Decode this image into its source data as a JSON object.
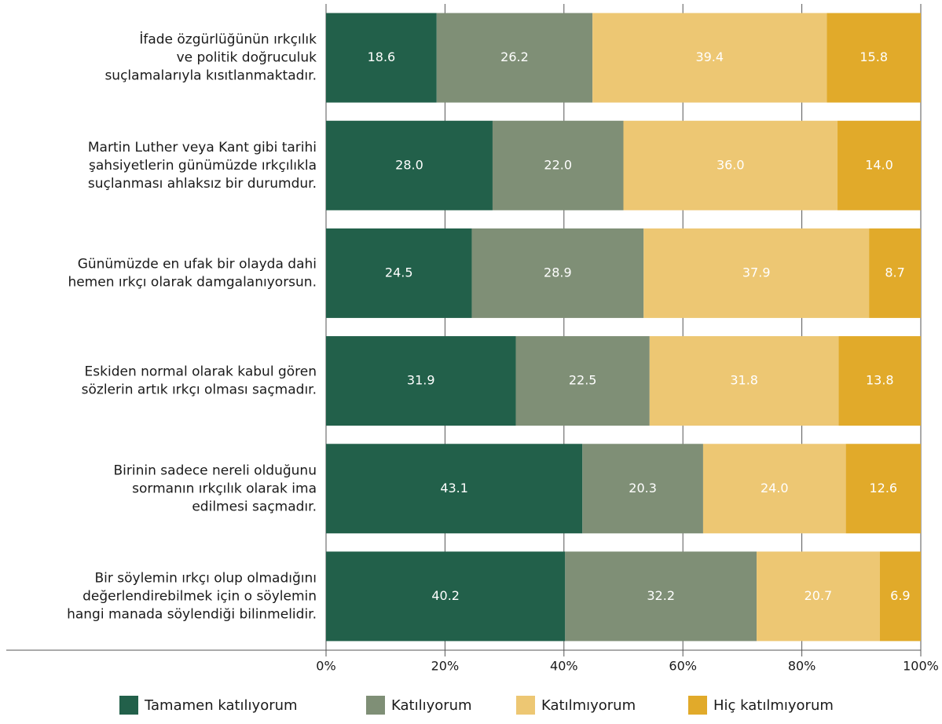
{
  "chart_data": {
    "type": "stacked-bar-horizontal",
    "categories": [
      [
        "İfade özgürlüğünün ırkçılık",
        "ve politik doğruculuk",
        "suçlamalarıyla kısıtlanmaktadır."
      ],
      [
        "Martin Luther veya Kant gibi tarihi",
        "şahsiyetlerin günümüzde ırkçılıkla",
        "suçlanması ahlaksız bir durumdur."
      ],
      [
        "Günümüzde en ufak bir olayda dahi",
        "hemen ırkçı olarak damgalanıyorsun."
      ],
      [
        "Eskiden normal olarak kabul gören",
        "sözlerin artık ırkçı olması saçmadır."
      ],
      [
        "Birinin sadece nereli olduğunu",
        "sormanın ırkçılık olarak ima",
        "edilmesi saçmadır."
      ],
      [
        "Bir söylemin ırkçı olup olmadığını",
        "değerlendirebilmek için o söylemin",
        "hangi manada söylendiği bilinmelidir."
      ]
    ],
    "series": [
      {
        "name": "Tamamen katılıyorum",
        "color": "#22604a",
        "values": [
          18.6,
          28.0,
          24.5,
          31.9,
          43.1,
          40.2
        ],
        "value_labels": [
          "18.6",
          "28.0",
          "24.5",
          "31.9",
          "43.1",
          "40.2"
        ]
      },
      {
        "name": "Katılıyorum",
        "color": "#7f8f76",
        "values": [
          26.2,
          22.0,
          28.9,
          22.5,
          20.3,
          32.2
        ],
        "value_labels": [
          "26.2",
          "22.0",
          "28.9",
          "22.5",
          "20.3",
          "32.2"
        ]
      },
      {
        "name": "Katılmıyorum",
        "color": "#edc773",
        "values": [
          39.4,
          36.0,
          37.9,
          31.8,
          24.0,
          20.7
        ],
        "value_labels": [
          "39.4",
          "36.0",
          "37.9",
          "31.8",
          "24.0",
          "20.7"
        ]
      },
      {
        "name": "Hiç katılmıyorum",
        "color": "#e1aa2a",
        "values": [
          15.8,
          14.0,
          8.7,
          13.8,
          12.6,
          6.9
        ],
        "value_labels": [
          "15.8",
          "14.0",
          "8.7",
          "13.8",
          "12.6",
          "6.9"
        ]
      }
    ],
    "xlim": [
      0,
      100
    ],
    "xticks": [
      {
        "value": 0,
        "label": "0%"
      },
      {
        "value": 20,
        "label": "20%"
      },
      {
        "value": 40,
        "label": "40%"
      },
      {
        "value": 60,
        "label": "60%"
      },
      {
        "value": 80,
        "label": "80%"
      },
      {
        "value": 100,
        "label": "100%"
      }
    ],
    "grid": true,
    "legend": "bottom"
  }
}
